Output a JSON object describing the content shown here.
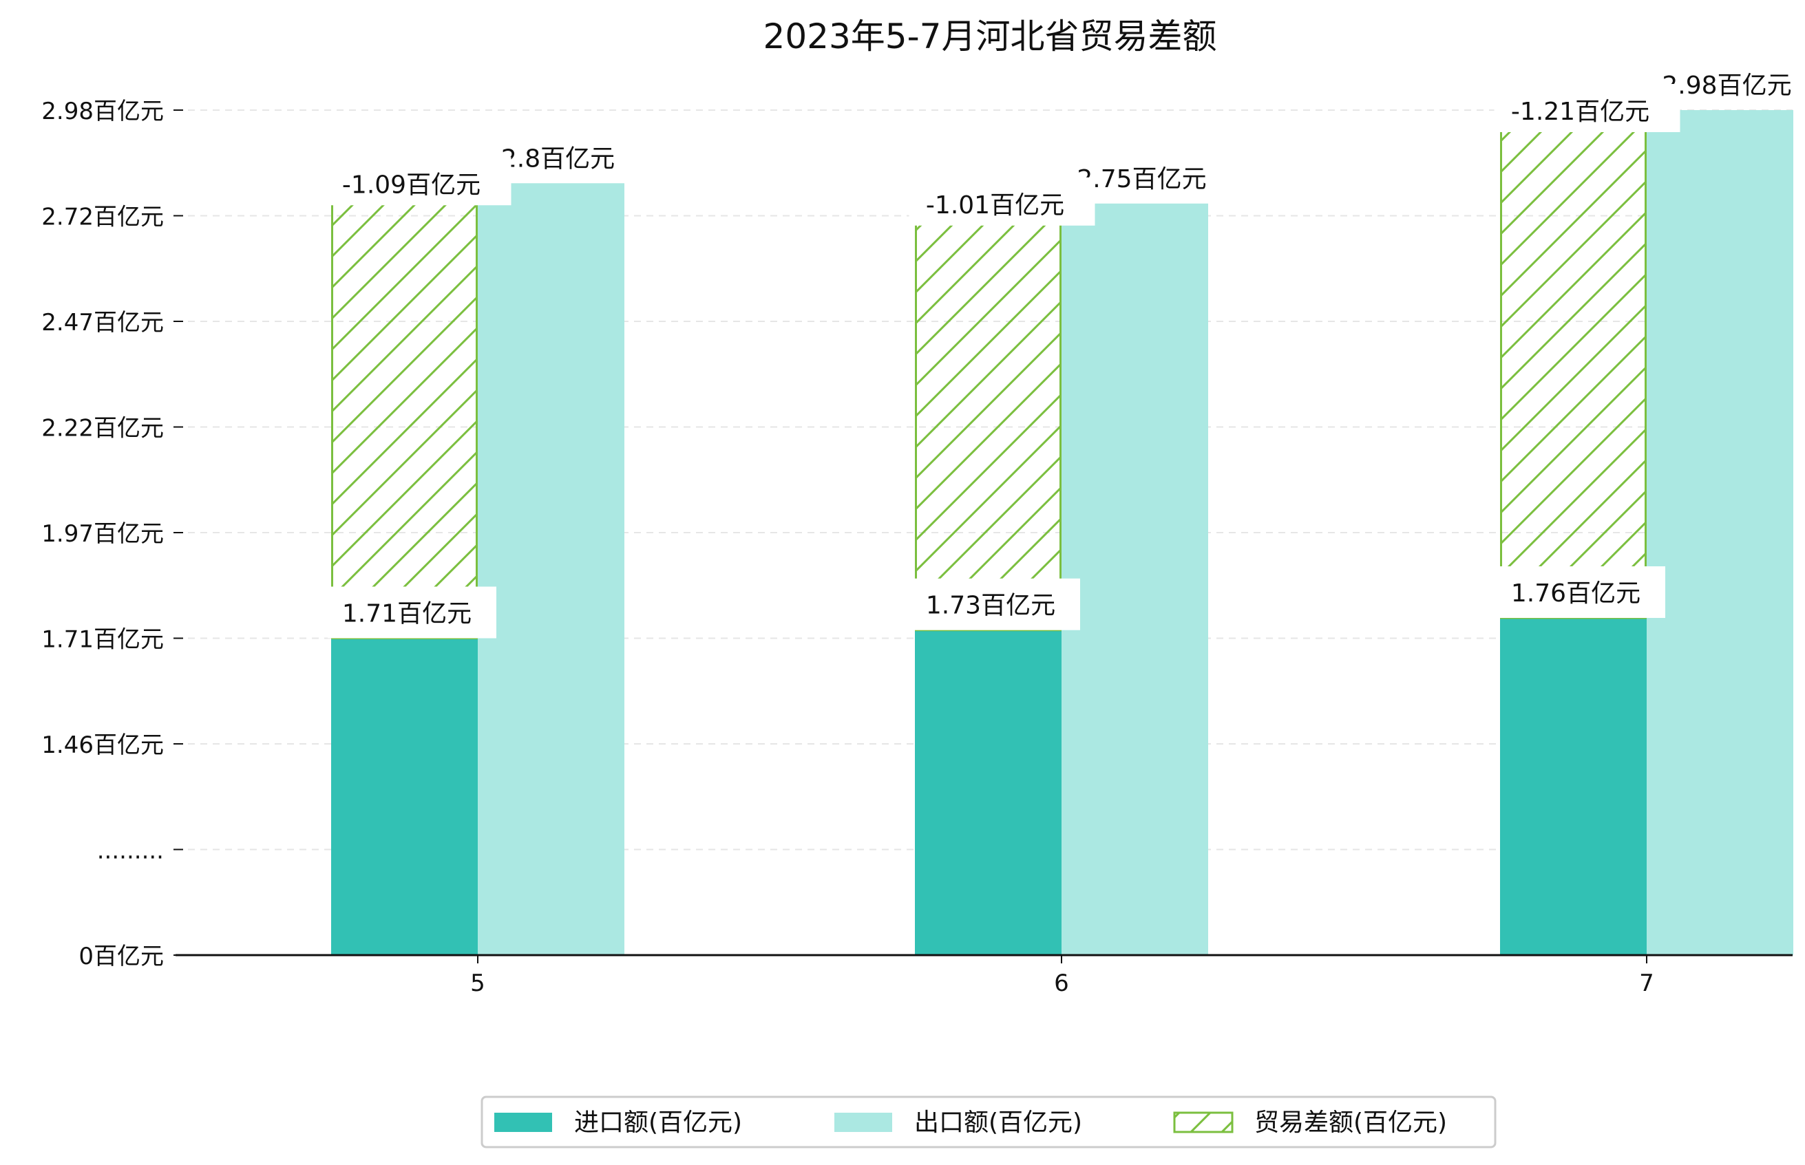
{
  "chart_data": {
    "type": "bar",
    "title": "2023年5-7月河北省贸易差额",
    "categories": [
      "5",
      "6",
      "7"
    ],
    "series": [
      {
        "name": "进口额(百亿元)",
        "values": [
          1.71,
          1.73,
          1.76
        ],
        "labels": [
          "1.71百亿元",
          "1.73百亿元",
          "1.76百亿元"
        ],
        "color": "#32c1b4"
      },
      {
        "name": "出口额(百亿元)",
        "values": [
          2.8,
          2.75,
          2.98
        ],
        "labels": [
          "2.8百亿元",
          "2.75百亿元",
          "2.98百亿元"
        ],
        "color": "#abe8e2"
      },
      {
        "name": "贸易差额(百亿元)",
        "values": [
          -1.09,
          -1.01,
          -1.21
        ],
        "labels": [
          "-1.09百亿元",
          "-1.01百亿元",
          "-1.21百亿元"
        ],
        "color": "#7bbf3f",
        "pattern": "hatch"
      }
    ],
    "yticks": [
      {
        "value": 0,
        "label": "0百亿元"
      },
      {
        "value": null,
        "label": "........."
      },
      {
        "value": 1.46,
        "label": "1.46百亿元"
      },
      {
        "value": 1.71,
        "label": "1.71百亿元"
      },
      {
        "value": 1.97,
        "label": "1.97百亿元"
      },
      {
        "value": 2.22,
        "label": "2.22百亿元"
      },
      {
        "value": 2.47,
        "label": "2.47百亿元"
      },
      {
        "value": 2.72,
        "label": "2.72百亿元"
      },
      {
        "value": 2.98,
        "label": "2.98百亿元"
      }
    ],
    "xlabel": "",
    "ylabel": "",
    "grid": "horizontal-dashed",
    "legend_position": "bottom-center"
  }
}
